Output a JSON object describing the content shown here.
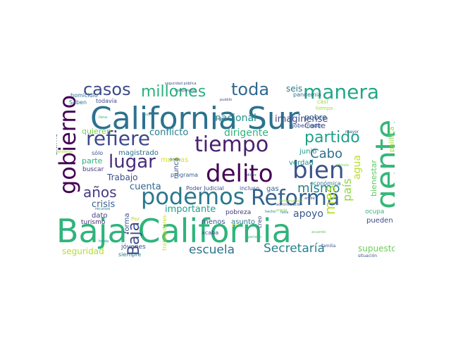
{
  "word_cloud": {
    "words": [
      {
        "text": "Baja California",
        "color": "#2fb47c"
      },
      {
        "text": "California Sur",
        "color": "#2c728e"
      },
      {
        "text": "gente",
        "color": "#35b779"
      },
      {
        "text": "gobierno",
        "color": "#440154"
      },
      {
        "text": "delito",
        "color": "#440154"
      },
      {
        "text": "podemos",
        "color": "#2a788e"
      },
      {
        "text": "Reforma",
        "color": "#33628d"
      },
      {
        "text": "refiere",
        "color": "#3f4889"
      },
      {
        "text": "tiempo",
        "color": "#481f70"
      },
      {
        "text": "bien",
        "color": "#3b528b"
      },
      {
        "text": "lugar",
        "color": "#472d7b"
      },
      {
        "text": "manera",
        "color": "#21a685"
      },
      {
        "text": "millones",
        "color": "#2ab07f"
      },
      {
        "text": "casos",
        "color": "#3e4a89"
      },
      {
        "text": "toda",
        "color": "#31688e"
      },
      {
        "text": "partido",
        "color": "#1f9e89"
      },
      {
        "text": "Cabo",
        "color": "#2d708e"
      },
      {
        "text": "Baja",
        "color": "#3e4c8a"
      },
      {
        "text": "mismo",
        "color": "#26828e"
      },
      {
        "text": "mes",
        "color": "#b5de2b"
      },
      {
        "text": "años",
        "color": "#443a83"
      },
      {
        "text": "escuela",
        "color": "#2c728e"
      },
      {
        "text": "Secretaría",
        "color": "#27808e"
      },
      {
        "text": "país",
        "color": "#90d743"
      },
      {
        "text": "agua",
        "color": "#b8de29"
      },
      {
        "text": "apoyo",
        "color": "#38588c"
      },
      {
        "text": "dirigente",
        "color": "#2fb47c"
      },
      {
        "text": "conflicto",
        "color": "#277f8e"
      },
      {
        "text": "nacional",
        "color": "#21918c"
      },
      {
        "text": "imagínense",
        "color": "#3e4989"
      },
      {
        "text": "cuenta",
        "color": "#31678e"
      },
      {
        "text": "crisis",
        "color": "#355f8d"
      },
      {
        "text": "importante",
        "color": "#1fa088"
      },
      {
        "text": "supuesto",
        "color": "#6ccd5a"
      },
      {
        "text": "seguridad",
        "color": "#b5de2b"
      },
      {
        "text": "bienestar",
        "color": "#5ec962"
      },
      {
        "text": "política",
        "color": "#a0da39"
      },
      {
        "text": "Corte",
        "color": "#3a548c"
      },
      {
        "text": "pobre",
        "color": "#34618d"
      },
      {
        "text": "seis",
        "color": "#2a788e"
      },
      {
        "text": "Trabajo",
        "color": "#3b518b"
      },
      {
        "text": "quieren",
        "color": "#7ad151"
      },
      {
        "text": "parte",
        "color": "#2ab07f"
      },
      {
        "text": "junio",
        "color": "#1f968b"
      },
      {
        "text": "verdad",
        "color": "#1f958b"
      },
      {
        "text": "gas",
        "color": "#34618d"
      },
      {
        "text": "magistrado",
        "color": "#2e6f8e"
      },
      {
        "text": "forma",
        "color": "#3b528b"
      },
      {
        "text": "nunca",
        "color": "#3b528b"
      },
      {
        "text": "muchas",
        "color": "#d8e219"
      },
      {
        "text": "menos",
        "color": "#3b528b"
      },
      {
        "text": "asunto",
        "color": "#2b758e"
      },
      {
        "text": "pobreza",
        "color": "#443a83"
      },
      {
        "text": "pueden",
        "color": "#3e4989"
      },
      {
        "text": "ocupa",
        "color": "#35b779"
      },
      {
        "text": "último",
        "color": "#3b528b"
      },
      {
        "text": "dato",
        "color": "#433e85"
      },
      {
        "text": "turismo",
        "color": "#472d7b"
      },
      {
        "text": "buscar",
        "color": "#453781"
      },
      {
        "text": "sólo",
        "color": "#38588c"
      },
      {
        "text": "jóvenes",
        "color": "#3b528b"
      },
      {
        "text": "siempre",
        "color": "#2a788e"
      },
      {
        "text": "todavía",
        "color": "#3e4989"
      },
      {
        "text": "homicidio",
        "color": "#2c728e"
      },
      {
        "text": "Saben",
        "color": "#2c728e"
      },
      {
        "text": "programa",
        "color": "#365c8d"
      },
      {
        "text": "Poder Judicial",
        "color": "#3b528b"
      },
      {
        "text": "incluso",
        "color": "#3b528b"
      },
      {
        "text": "económica",
        "color": "#2a788e"
      },
      {
        "text": "acaba",
        "color": "#3b528b"
      },
      {
        "text": "creo",
        "color": "#414487"
      },
      {
        "text": "gobernador",
        "color": "#3b528b"
      },
      {
        "text": "pandemia",
        "color": "#2c728e"
      },
      {
        "text": "casi",
        "color": "#a5db36"
      },
      {
        "text": "tiempo",
        "color": "#9fda3a"
      },
      {
        "text": "trabajadores",
        "color": "#c2df23"
      },
      {
        "text": "Paz",
        "color": "#addc30"
      },
      {
        "text": "17",
        "color": "#fde725"
      },
      {
        "text": "mayor",
        "color": "#3e4989"
      },
      {
        "text": "familia",
        "color": "#3b528b"
      },
      {
        "text": "situación",
        "color": "#3b528b"
      },
      {
        "text": "seguridad pública",
        "color": "#3b528b"
      },
      {
        "text": "compañeros",
        "color": "#3e4989"
      },
      {
        "text": "pueblo",
        "color": "#3b528b"
      },
      {
        "text": "segundo",
        "color": "#3b528b"
      },
      {
        "text": "llena",
        "color": "#35b779"
      },
      {
        "text": "hoy",
        "color": "#35b779"
      },
      {
        "text": "dinero",
        "color": "#2a788e"
      },
      {
        "text": "recursos",
        "color": "#2a788e"
      },
      {
        "text": "pendiente",
        "color": "#a0da39"
      },
      {
        "text": "hecho",
        "color": "#2a788e"
      },
      {
        "text": "dicho",
        "color": "#3b528b"
      },
      {
        "text": "periodo",
        "color": "#35b779"
      },
      {
        "text": "fonda",
        "color": "#1f968b"
      },
      {
        "text": "acuerdo",
        "color": "#5ec962"
      },
      {
        "text": "arriba",
        "color": "#3e4989"
      },
      {
        "text": "falta",
        "color": "#2a788e"
      },
      {
        "text": "preció",
        "color": "#7ad151"
      },
      {
        "text": "información",
        "color": "#9fda3a"
      },
      {
        "text": "administración",
        "color": "#3b528b"
      },
      {
        "text": "artículo",
        "color": "#6ccd5a"
      }
    ]
  }
}
